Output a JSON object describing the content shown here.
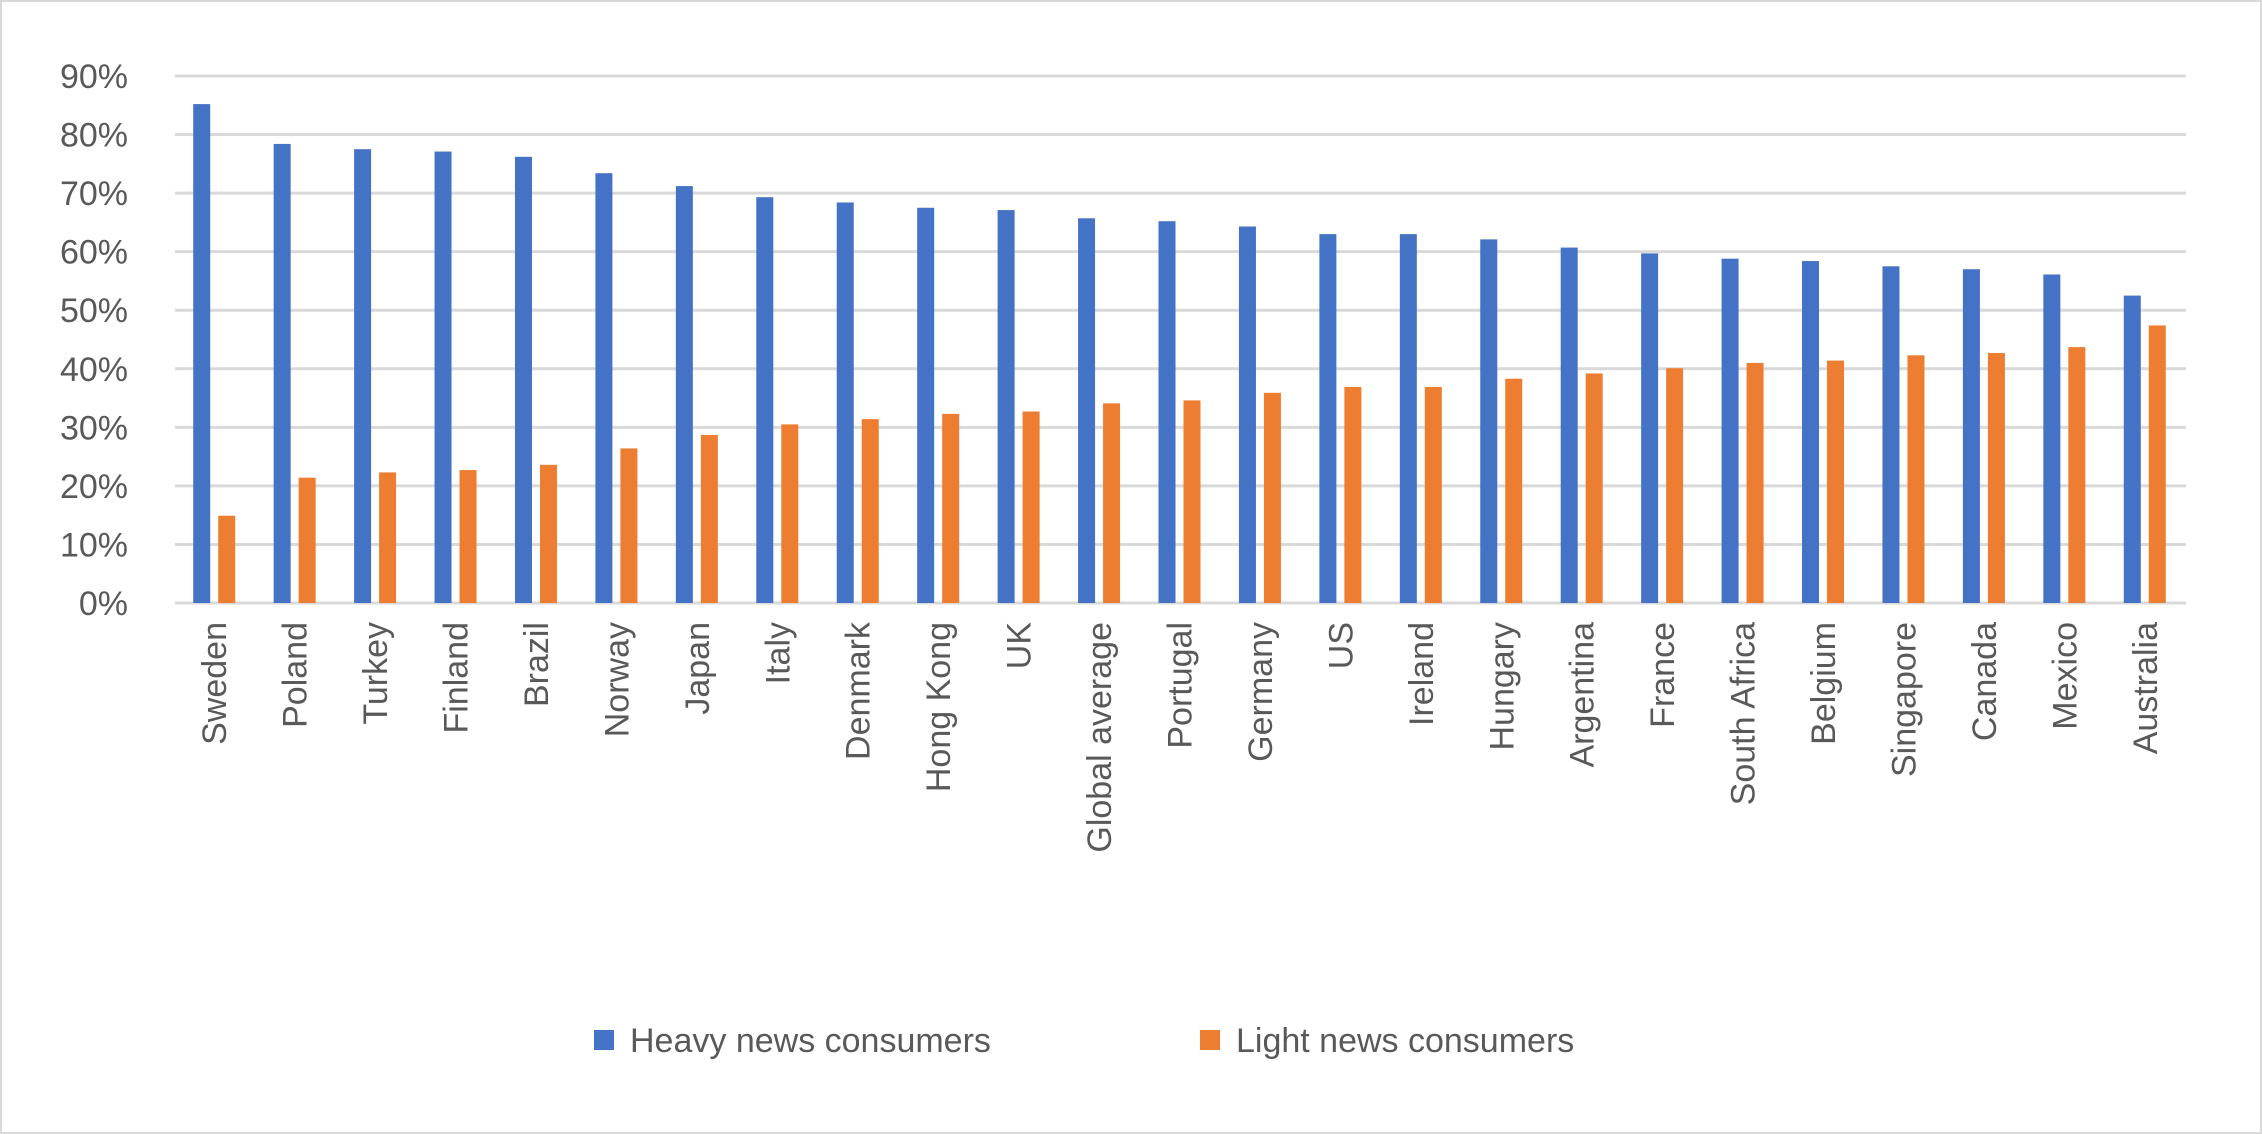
{
  "chart_data": {
    "type": "bar",
    "title": "",
    "xlabel": "",
    "ylabel": "",
    "ylim": [
      0,
      90
    ],
    "y_ticks": [
      "0%",
      "10%",
      "20%",
      "30%",
      "40%",
      "50%",
      "60%",
      "70%",
      "80%",
      "90%"
    ],
    "y_unit": "%",
    "grid": true,
    "legend_position": "bottom",
    "categories": [
      "Sweden",
      "Poland",
      "Turkey",
      "Finland",
      "Brazil",
      "Norway",
      "Japan",
      "Italy",
      "Denmark",
      "Hong Kong",
      "UK",
      "Global average",
      "Portugal",
      "Germany",
      "US",
      "Ireland",
      "Hungary",
      "Argentina",
      "France",
      "South Africa",
      "Belgium",
      "Singapore",
      "Canada",
      "Mexico",
      "Australia"
    ],
    "series": [
      {
        "name": "Heavy news consumers",
        "color": "#4472C4",
        "values": [
          85.2,
          78.4,
          77.5,
          77.1,
          76.2,
          73.4,
          71.2,
          69.3,
          68.4,
          67.5,
          67.1,
          65.7,
          65.2,
          64.3,
          63.0,
          63.0,
          62.1,
          60.7,
          59.7,
          58.8,
          58.4,
          57.5,
          57.0,
          56.1,
          52.5
        ]
      },
      {
        "name": "Light news consumers",
        "color": "#ED7D31",
        "values": [
          14.9,
          21.4,
          22.3,
          22.7,
          23.6,
          26.4,
          28.7,
          30.5,
          31.4,
          32.3,
          32.7,
          34.1,
          34.6,
          35.9,
          36.9,
          36.9,
          38.3,
          39.2,
          40.1,
          41.0,
          41.4,
          42.3,
          42.7,
          43.7,
          47.4
        ]
      }
    ]
  }
}
